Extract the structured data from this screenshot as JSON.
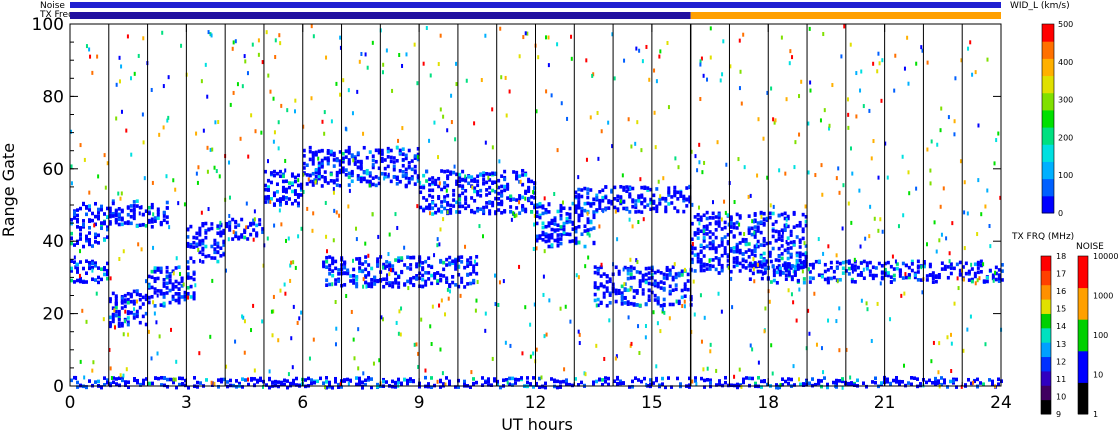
{
  "header": {
    "noise_label": "Noise",
    "freq_label": "TX Freq"
  },
  "chart_data": {
    "type": "heatmap",
    "title": "",
    "xlabel": "UT hours",
    "ylabel": "Range Gate",
    "xlim": [
      0,
      24
    ],
    "ylim": [
      0,
      100
    ],
    "x_ticks": [
      "0",
      "3",
      "6",
      "9",
      "12",
      "15",
      "18",
      "21",
      "24"
    ],
    "y_ticks": [
      "0",
      "20",
      "40",
      "60",
      "80",
      "100"
    ],
    "hour_boundaries": [
      1,
      2,
      3,
      4,
      5,
      6,
      7,
      8,
      9,
      10,
      11,
      12,
      13,
      14,
      15,
      16,
      17,
      18,
      19,
      20,
      21,
      22,
      23
    ],
    "background_color": "#ffffff",
    "bands": [
      {
        "name": "",
        "segments": [
          {
            "t0": 0.0,
            "t1": 1.0,
            "gate": 45,
            "width": 10
          },
          {
            "t0": 0.0,
            "t1": 1.0,
            "gate": 32,
            "width": 5
          },
          {
            "t0": 1.0,
            "t1": 2.0,
            "gate": 22,
            "width": 9
          },
          {
            "t0": 1.0,
            "t1": 2.5,
            "gate": 48,
            "width": 6
          },
          {
            "t0": 2.0,
            "t1": 3.2,
            "gate": 28,
            "width": 9
          },
          {
            "t0": 3.0,
            "t1": 4.0,
            "gate": 40,
            "width": 9
          },
          {
            "t0": 4.0,
            "t1": 5.0,
            "gate": 44,
            "width": 5
          },
          {
            "t0": 5.0,
            "t1": 6.0,
            "gate": 55,
            "width": 8
          },
          {
            "t0": 6.0,
            "t1": 9.0,
            "gate": 61,
            "width": 9
          },
          {
            "t0": 9.0,
            "t1": 12.0,
            "gate": 54,
            "width": 10
          },
          {
            "t0": 12.0,
            "t1": 13.5,
            "gate": 45,
            "width": 10
          },
          {
            "t0": 13.5,
            "t1": 16.0,
            "gate": 28,
            "width": 9
          },
          {
            "t0": 6.5,
            "t1": 10.5,
            "gate": 32,
            "width": 7
          },
          {
            "t0": 13.0,
            "t1": 16.0,
            "gate": 52,
            "width": 6
          },
          {
            "t0": 16.0,
            "t1": 19.0,
            "gate": 40,
            "width": 14
          },
          {
            "t0": 17.5,
            "t1": 24.0,
            "gate": 32,
            "width": 5
          },
          {
            "t0": 0.0,
            "t1": 24.0,
            "gate": 1,
            "width": 3
          }
        ]
      }
    ],
    "colorbars": [
      {
        "title": "WID_L (km/s)",
        "min": 0,
        "max": 500,
        "ticks": [
          "0",
          "100",
          "200",
          "300",
          "400",
          "500"
        ],
        "colors": [
          "#0000ff",
          "#0060ff",
          "#00b0ff",
          "#00e0e0",
          "#00e080",
          "#00e000",
          "#80e000",
          "#e0e000",
          "#ffb000",
          "#ff7000",
          "#ff0000"
        ]
      },
      {
        "title": "TX FRQ (MHz)",
        "ticks": [
          "9",
          "10",
          "11",
          "12",
          "13",
          "14",
          "15",
          "16",
          "17",
          "18"
        ],
        "colors": [
          "#000000",
          "#400060",
          "#3000c0",
          "#0030ff",
          "#00a0ff",
          "#00e0c0",
          "#00d000",
          "#e0e000",
          "#ff9000",
          "#ff4000",
          "#ff0000"
        ]
      },
      {
        "title": "NOISE",
        "ticks": [
          "1",
          "10",
          "100",
          "1000",
          "10000"
        ],
        "colors": [
          "#000000",
          "#0000ff",
          "#00d000",
          "#ffa000",
          "#ff0000"
        ]
      }
    ],
    "noise_strip": [
      {
        "t0": 0,
        "t1": 24,
        "color": "#2020d0"
      }
    ],
    "freq_strip": [
      {
        "t0": 0,
        "t1": 16.0,
        "color": "#2010a0"
      },
      {
        "t0": 16.0,
        "t1": 24,
        "color": "#ffa000"
      }
    ],
    "grid": false
  }
}
